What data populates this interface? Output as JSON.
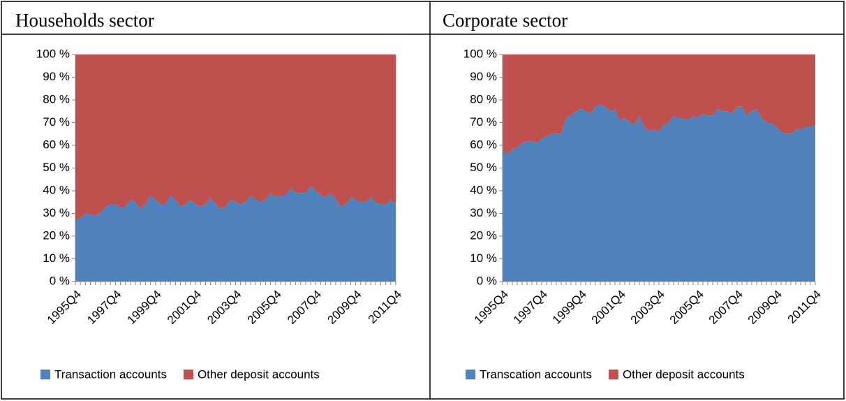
{
  "chart_data": [
    {
      "type": "stacked-area",
      "title": "Households sector",
      "categories": [
        "1995Q4",
        null,
        null,
        null,
        null,
        null,
        null,
        null,
        "1997Q4",
        null,
        null,
        null,
        null,
        null,
        null,
        null,
        "1999Q4",
        null,
        null,
        null,
        null,
        null,
        null,
        null,
        "2001Q4",
        null,
        null,
        null,
        null,
        null,
        null,
        null,
        "2003Q4",
        null,
        null,
        null,
        null,
        null,
        null,
        null,
        "2005Q4",
        null,
        null,
        null,
        null,
        null,
        null,
        null,
        "2007Q4",
        null,
        null,
        null,
        null,
        null,
        null,
        null,
        "2009Q4",
        null,
        null,
        null,
        null,
        null,
        null,
        null,
        "2011Q4"
      ],
      "series": [
        {
          "name": "Transaction accounts",
          "color": "#4f81bd",
          "values": [
            27,
            28,
            30,
            29.5,
            29,
            30,
            33,
            34,
            34,
            32.5,
            33,
            36,
            35,
            32,
            34,
            38,
            36,
            34,
            34,
            38,
            36,
            33,
            34,
            36,
            34,
            33,
            34,
            37,
            34,
            32,
            33,
            36,
            35,
            34,
            35,
            38,
            36,
            35,
            36,
            39,
            37,
            38,
            38,
            41,
            39,
            39,
            39,
            42,
            40,
            38,
            37,
            39,
            36,
            33,
            34,
            37,
            36,
            35,
            35,
            37,
            35,
            34,
            34,
            36,
            34
          ]
        },
        {
          "name": "Other deposit accounts",
          "color": "#c0504d",
          "values": [
            73,
            72,
            70,
            70.5,
            71,
            70,
            67,
            66,
            66,
            67.5,
            67,
            64,
            65,
            68,
            66,
            62,
            64,
            66,
            66,
            62,
            64,
            67,
            66,
            64,
            66,
            67,
            66,
            63,
            66,
            68,
            67,
            64,
            65,
            66,
            65,
            62,
            64,
            65,
            64,
            61,
            63,
            62,
            62,
            59,
            61,
            61,
            61,
            58,
            60,
            62,
            63,
            61,
            64,
            67,
            66,
            63,
            64,
            65,
            65,
            63,
            65,
            66,
            66,
            64,
            66
          ]
        }
      ],
      "ylim": [
        0,
        100
      ],
      "yticks": [
        {
          "value": 0,
          "label": "0 %"
        },
        {
          "value": 10,
          "label": "10 %"
        },
        {
          "value": 20,
          "label": "20 %"
        },
        {
          "value": 30,
          "label": "30 %"
        },
        {
          "value": 40,
          "label": "40 %"
        },
        {
          "value": 50,
          "label": "50 %"
        },
        {
          "value": 60,
          "label": "60 %"
        },
        {
          "value": 70,
          "label": "70 %"
        },
        {
          "value": 80,
          "label": "80 %"
        },
        {
          "value": 90,
          "label": "90 %"
        },
        {
          "value": 100,
          "label": "100 %"
        }
      ],
      "grid": false,
      "legend": "bottom"
    },
    {
      "type": "stacked-area",
      "title": "Corporate sector",
      "categories": [
        "1995Q4",
        null,
        null,
        null,
        null,
        null,
        null,
        null,
        "1997Q4",
        null,
        null,
        null,
        null,
        null,
        null,
        null,
        "1999Q4",
        null,
        null,
        null,
        null,
        null,
        null,
        null,
        "2001Q4",
        null,
        null,
        null,
        null,
        null,
        null,
        null,
        "2003Q4",
        null,
        null,
        null,
        null,
        null,
        null,
        null,
        "2005Q4",
        null,
        null,
        null,
        null,
        null,
        null,
        null,
        "2007Q4",
        null,
        null,
        null,
        null,
        null,
        null,
        null,
        "2009Q4",
        null,
        null,
        null,
        null,
        null,
        null,
        null,
        "2011Q4"
      ],
      "series": [
        {
          "name": "Transcation accounts",
          "color": "#4f81bd",
          "values": [
            58,
            56,
            58,
            59,
            61,
            61.5,
            62,
            61,
            63,
            64,
            65,
            65,
            65,
            72,
            73,
            75,
            76,
            75,
            74,
            77,
            78,
            77,
            75,
            76,
            71,
            72,
            70,
            69,
            73,
            68,
            66,
            67,
            66,
            69,
            70,
            73,
            72,
            72,
            71,
            73,
            72,
            74,
            73,
            73,
            76,
            75,
            75,
            74,
            77,
            77,
            73,
            75,
            76,
            72,
            70,
            70,
            68,
            66,
            65,
            65,
            67,
            67,
            68,
            68,
            69
          ]
        },
        {
          "name": "Other deposit accounts",
          "color": "#c0504d",
          "values": [
            42,
            44,
            42,
            41,
            39,
            38.5,
            38,
            39,
            37,
            36,
            35,
            35,
            35,
            28,
            27,
            25,
            24,
            25,
            26,
            23,
            22,
            23,
            25,
            24,
            29,
            28,
            30,
            31,
            27,
            32,
            34,
            33,
            34,
            31,
            30,
            27,
            28,
            28,
            29,
            27,
            28,
            26,
            27,
            27,
            24,
            25,
            25,
            26,
            23,
            23,
            27,
            25,
            24,
            28,
            30,
            30,
            32,
            34,
            35,
            35,
            33,
            33,
            32,
            32,
            31
          ]
        }
      ],
      "ylim": [
        0,
        100
      ],
      "yticks": [
        {
          "value": 0,
          "label": "0 %"
        },
        {
          "value": 10,
          "label": "10 %"
        },
        {
          "value": 20,
          "label": "20 %"
        },
        {
          "value": 30,
          "label": "30 %"
        },
        {
          "value": 40,
          "label": "40 %"
        },
        {
          "value": 50,
          "label": "50 %"
        },
        {
          "value": 60,
          "label": "60 %"
        },
        {
          "value": 70,
          "label": "70 %"
        },
        {
          "value": 80,
          "label": "80 %"
        },
        {
          "value": 90,
          "label": "90 %"
        },
        {
          "value": 100,
          "label": "100 %"
        }
      ],
      "grid": false,
      "legend": "bottom"
    }
  ]
}
